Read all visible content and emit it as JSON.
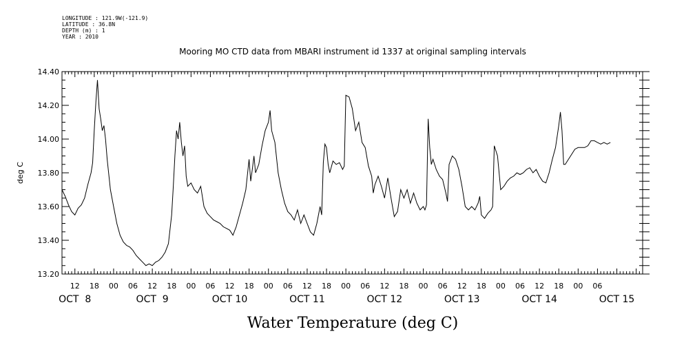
{
  "metadata": [
    "LONGITUDE : 121.9W(-121.9)",
    "LATITUDE : 36.8N",
    "DEPTH (m) : 1",
    "YEAR : 2010"
  ],
  "chart_data": {
    "type": "line",
    "title": "Mooring MO CTD data from MBARI instrument id 1337 at original sampling intervals",
    "xlabel": "Water Temperature (deg C)",
    "ylabel": "deg C",
    "ylim": [
      13.2,
      14.4
    ],
    "yticks": [
      "13.20",
      "13.40",
      "13.60",
      "13.80",
      "14.00",
      "14.20",
      "14.40"
    ],
    "xlim_hours": [
      8,
      188
    ],
    "hour_ticks": [
      "12",
      "18",
      "00",
      "06",
      "12",
      "18",
      "00",
      "06",
      "12",
      "18",
      "00",
      "06",
      "12",
      "18",
      "00",
      "06",
      "12",
      "18",
      "00",
      "06",
      "12",
      "18",
      "00",
      "06",
      "12",
      "18",
      "00",
      "06"
    ],
    "day_labels": [
      "OCT  8",
      "OCT  9",
      "OCT 10",
      "OCT 11",
      "OCT 12",
      "OCT 13",
      "OCT 14",
      "OCT 15"
    ],
    "grid": false,
    "series": [
      {
        "values": [
          [
            8,
            13.7
          ],
          [
            9,
            13.66
          ],
          [
            10,
            13.61
          ],
          [
            11,
            13.57
          ],
          [
            12,
            13.55
          ],
          [
            13,
            13.59
          ],
          [
            14,
            13.61
          ],
          [
            15,
            13.65
          ],
          [
            16,
            13.73
          ],
          [
            17,
            13.8
          ],
          [
            17.5,
            13.86
          ],
          [
            18,
            14.05
          ],
          [
            18.5,
            14.22
          ],
          [
            19,
            14.35
          ],
          [
            19.5,
            14.18
          ],
          [
            20,
            14.12
          ],
          [
            20.5,
            14.05
          ],
          [
            21,
            14.08
          ],
          [
            21.5,
            14.0
          ],
          [
            22,
            13.88
          ],
          [
            23,
            13.7
          ],
          [
            24,
            13.6
          ],
          [
            25,
            13.5
          ],
          [
            26,
            13.43
          ],
          [
            27,
            13.39
          ],
          [
            28,
            13.37
          ],
          [
            29,
            13.36
          ],
          [
            30,
            13.34
          ],
          [
            31,
            13.31
          ],
          [
            32,
            13.29
          ],
          [
            33,
            13.27
          ],
          [
            34,
            13.25
          ],
          [
            35,
            13.26
          ],
          [
            36,
            13.25
          ],
          [
            37,
            13.27
          ],
          [
            38,
            13.28
          ],
          [
            39,
            13.3
          ],
          [
            40,
            13.33
          ],
          [
            41,
            13.38
          ],
          [
            42,
            13.55
          ],
          [
            42.5,
            13.72
          ],
          [
            43,
            13.9
          ],
          [
            43.5,
            14.05
          ],
          [
            44,
            14.0
          ],
          [
            44.5,
            14.1
          ],
          [
            45,
            13.98
          ],
          [
            45.5,
            13.9
          ],
          [
            46,
            13.96
          ],
          [
            46.5,
            13.78
          ],
          [
            47,
            13.72
          ],
          [
            48,
            13.74
          ],
          [
            49,
            13.7
          ],
          [
            50,
            13.68
          ],
          [
            51,
            13.72
          ],
          [
            52,
            13.6
          ],
          [
            53,
            13.56
          ],
          [
            54,
            13.54
          ],
          [
            55,
            13.52
          ],
          [
            56,
            13.51
          ],
          [
            57,
            13.5
          ],
          [
            58,
            13.48
          ],
          [
            59,
            13.47
          ],
          [
            60,
            13.46
          ],
          [
            61,
            13.43
          ],
          [
            62,
            13.48
          ],
          [
            63,
            13.55
          ],
          [
            64,
            13.62
          ],
          [
            65,
            13.7
          ],
          [
            66,
            13.88
          ],
          [
            66.5,
            13.75
          ],
          [
            67,
            13.82
          ],
          [
            67.5,
            13.9
          ],
          [
            68,
            13.8
          ],
          [
            69,
            13.85
          ],
          [
            70,
            13.96
          ],
          [
            71,
            14.05
          ],
          [
            72,
            14.1
          ],
          [
            72.5,
            14.17
          ],
          [
            73,
            14.05
          ],
          [
            74,
            13.98
          ],
          [
            75,
            13.8
          ],
          [
            76,
            13.7
          ],
          [
            77,
            13.62
          ],
          [
            78,
            13.57
          ],
          [
            79,
            13.55
          ],
          [
            80,
            13.52
          ],
          [
            81,
            13.58
          ],
          [
            82,
            13.5
          ],
          [
            83,
            13.55
          ],
          [
            84,
            13.5
          ],
          [
            85,
            13.45
          ],
          [
            86,
            13.43
          ],
          [
            87,
            13.5
          ],
          [
            88,
            13.6
          ],
          [
            88.5,
            13.55
          ],
          [
            89,
            13.86
          ],
          [
            89.5,
            13.97
          ],
          [
            90,
            13.95
          ],
          [
            90.5,
            13.85
          ],
          [
            91,
            13.8
          ],
          [
            92,
            13.87
          ],
          [
            93,
            13.85
          ],
          [
            94,
            13.86
          ],
          [
            95,
            13.82
          ],
          [
            95.5,
            13.84
          ],
          [
            96,
            14.26
          ],
          [
            97,
            14.25
          ],
          [
            98,
            14.18
          ],
          [
            99,
            14.05
          ],
          [
            100,
            14.1
          ],
          [
            101,
            13.98
          ],
          [
            102,
            13.95
          ],
          [
            103,
            13.84
          ],
          [
            104,
            13.78
          ],
          [
            104.5,
            13.68
          ],
          [
            105,
            13.73
          ],
          [
            106,
            13.78
          ],
          [
            107,
            13.72
          ],
          [
            108,
            13.65
          ],
          [
            109,
            13.77
          ],
          [
            110,
            13.65
          ],
          [
            111,
            13.54
          ],
          [
            112,
            13.57
          ],
          [
            113,
            13.7
          ],
          [
            114,
            13.65
          ],
          [
            115,
            13.7
          ],
          [
            116,
            13.62
          ],
          [
            117,
            13.68
          ],
          [
            118,
            13.62
          ],
          [
            119,
            13.58
          ],
          [
            120,
            13.6
          ],
          [
            120.5,
            13.58
          ],
          [
            121,
            13.61
          ],
          [
            121.5,
            14.12
          ],
          [
            122,
            13.95
          ],
          [
            122.5,
            13.85
          ],
          [
            123,
            13.88
          ],
          [
            124,
            13.82
          ],
          [
            125,
            13.78
          ],
          [
            126,
            13.76
          ],
          [
            127,
            13.68
          ],
          [
            127.5,
            13.63
          ],
          [
            128,
            13.85
          ],
          [
            129,
            13.9
          ],
          [
            130,
            13.88
          ],
          [
            131,
            13.82
          ],
          [
            132,
            13.72
          ],
          [
            133,
            13.6
          ],
          [
            134,
            13.58
          ],
          [
            135,
            13.6
          ],
          [
            136,
            13.58
          ],
          [
            137,
            13.62
          ],
          [
            137.5,
            13.66
          ],
          [
            138,
            13.55
          ],
          [
            139,
            13.53
          ],
          [
            140,
            13.56
          ],
          [
            141,
            13.58
          ],
          [
            141.5,
            13.6
          ],
          [
            142,
            13.96
          ],
          [
            143,
            13.9
          ],
          [
            143.5,
            13.8
          ],
          [
            144,
            13.7
          ],
          [
            145,
            13.72
          ],
          [
            146,
            13.75
          ],
          [
            147,
            13.77
          ],
          [
            148,
            13.78
          ],
          [
            149,
            13.8
          ],
          [
            150,
            13.79
          ],
          [
            151,
            13.8
          ],
          [
            152,
            13.82
          ],
          [
            153,
            13.83
          ],
          [
            154,
            13.8
          ],
          [
            155,
            13.82
          ],
          [
            156,
            13.78
          ],
          [
            157,
            13.75
          ],
          [
            158,
            13.74
          ],
          [
            159,
            13.8
          ],
          [
            160,
            13.88
          ],
          [
            161,
            13.95
          ],
          [
            162,
            14.08
          ],
          [
            162.5,
            14.16
          ],
          [
            163,
            14.05
          ],
          [
            163.5,
            13.85
          ],
          [
            164,
            13.85
          ],
          [
            165,
            13.88
          ],
          [
            166,
            13.91
          ],
          [
            167,
            13.94
          ],
          [
            168,
            13.95
          ],
          [
            169,
            13.95
          ],
          [
            170,
            13.95
          ],
          [
            171,
            13.96
          ],
          [
            172,
            13.99
          ],
          [
            173,
            13.99
          ],
          [
            174,
            13.98
          ],
          [
            175,
            13.97
          ],
          [
            176,
            13.98
          ],
          [
            177,
            13.97
          ],
          [
            178,
            13.98
          ]
        ]
      }
    ]
  }
}
